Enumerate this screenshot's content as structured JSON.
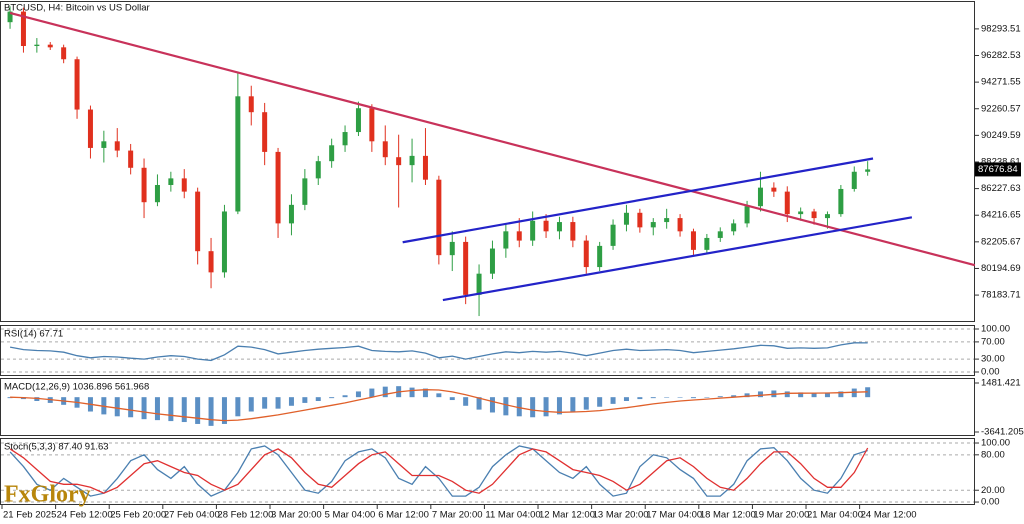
{
  "chart_data": [
    {
      "type": "candlestick",
      "title": "BTCUSD, H4:  Bitcoin vs US Dollar",
      "logo": "FxGlory",
      "up_color": "#2e9e44",
      "down_color": "#e0301e",
      "xlim": [
        -0.75,
        72.01
      ],
      "ylim": [
        76150,
        100400
      ],
      "yticks": [
        98293.51,
        96282.53,
        94271.55,
        92260.57,
        90249.59,
        88238.61,
        86227.63,
        84216.65,
        82205.67,
        80194.69,
        78183.71
      ],
      "xticks": [
        {
          "value": -0.6,
          "label": "21 Feb 2025"
        },
        {
          "value": 3.4,
          "label": "24 Feb 12:00"
        },
        {
          "value": 7.4,
          "label": "25 Feb 20:00"
        },
        {
          "value": 11.4,
          "label": "27 Feb 04:00"
        },
        {
          "value": 15.4,
          "label": "28 Feb 12:00"
        },
        {
          "value": 19.4,
          "label": "3 Mar 20:00"
        },
        {
          "value": 23.4,
          "label": "5 Mar 04:00"
        },
        {
          "value": 27.4,
          "label": "6 Mar 12:00"
        },
        {
          "value": 31.4,
          "label": "7 Mar 20:00"
        },
        {
          "value": 35.4,
          "label": "11 Mar 04:00"
        },
        {
          "value": 39.4,
          "label": "12 Mar 12:00"
        },
        {
          "value": 43.4,
          "label": "13 Mar 20:00"
        },
        {
          "value": 47.4,
          "label": "17 Mar 04:00"
        },
        {
          "value": 51.4,
          "label": "18 Mar 12:00"
        },
        {
          "value": 55.4,
          "label": "19 Mar 20:00"
        },
        {
          "value": 59.4,
          "label": "21 Mar 04:00"
        },
        {
          "value": 63.4,
          "label": "24 Mar 12:00"
        }
      ],
      "open": [
        98800,
        99600,
        97000,
        97100,
        96900,
        96000,
        92200,
        89300,
        89800,
        89100,
        87800,
        85200,
        86500,
        87000,
        86000,
        81500,
        79900,
        84500,
        93200,
        92000,
        89000,
        83600,
        85000,
        87000,
        88300,
        89500,
        90500,
        92300,
        89800,
        88600,
        88000,
        88700,
        86900,
        81200,
        82200,
        78200,
        79800,
        81700,
        83000,
        82300,
        83800,
        83000,
        83700,
        82300,
        80300,
        81900,
        83500,
        84400,
        83300,
        83700,
        84000,
        83000,
        81600,
        82500,
        83000,
        83600,
        84900,
        86300,
        86000,
        84300,
        84500,
        84000,
        84300,
        86200,
        87500
      ],
      "high": [
        100000,
        99900,
        97600,
        97300,
        97100,
        96200,
        92500,
        90600,
        90800,
        89600,
        88500,
        87300,
        87500,
        87700,
        86300,
        82500,
        85000,
        95000,
        94000,
        92700,
        89300,
        85800,
        87700,
        88700,
        90000,
        91000,
        92800,
        92600,
        91000,
        90300,
        90000,
        90800,
        87200,
        83000,
        82600,
        80500,
        82300,
        83600,
        84000,
        84500,
        84300,
        84100,
        84100,
        82700,
        82200,
        83900,
        85000,
        84700,
        84000,
        84700,
        84300,
        83200,
        82800,
        83300,
        83900,
        85300,
        87500,
        86700,
        86400,
        84800,
        84700,
        84500,
        86500,
        87900,
        88300
      ],
      "low": [
        98300,
        96500,
        96500,
        96700,
        95700,
        91500,
        88500,
        88200,
        88600,
        87300,
        84000,
        84900,
        86000,
        85500,
        80500,
        78700,
        79500,
        84300,
        91000,
        88000,
        82500,
        82700,
        84600,
        86500,
        87800,
        89000,
        90200,
        89000,
        88000,
        84800,
        86700,
        86500,
        80500,
        80000,
        77500,
        76600,
        79400,
        81000,
        81800,
        81900,
        82500,
        82400,
        81800,
        79800,
        80000,
        81600,
        83000,
        82900,
        82700,
        83200,
        82600,
        81200,
        81400,
        82200,
        82700,
        83300,
        84500,
        85600,
        83700,
        83800,
        83500,
        83200,
        84100,
        86000,
        87200
      ],
      "close": [
        99600,
        97000,
        97100,
        96900,
        96000,
        92200,
        89300,
        89800,
        89100,
        87800,
        85200,
        86500,
        87000,
        86000,
        81500,
        79900,
        84500,
        93200,
        92000,
        89000,
        83600,
        85000,
        87000,
        88300,
        89500,
        90500,
        92300,
        89800,
        88600,
        88000,
        88700,
        86900,
        81200,
        82200,
        78200,
        79800,
        81700,
        83000,
        82300,
        83800,
        83000,
        83700,
        82300,
        80300,
        81900,
        83500,
        84400,
        83300,
        83700,
        84000,
        83000,
        81600,
        82500,
        83000,
        83600,
        84900,
        86300,
        86000,
        84300,
        84500,
        84000,
        84300,
        86200,
        87500,
        87676.84
      ],
      "trendlines": [
        {
          "color": "#c8325a",
          "x": [
            0,
            72
          ],
          "y": [
            99498,
            80443
          ]
        },
        {
          "color": "#2323c8",
          "x": [
            29.3,
            64.4
          ],
          "y": [
            82175,
            88502
          ]
        },
        {
          "color": "#2323c8",
          "x": [
            32.3,
            67.3
          ],
          "y": [
            77806,
            84058
          ]
        }
      ]
    },
    {
      "type": "line",
      "label": "RSI(14) 67.71",
      "ylim": [
        -9.3,
        109.3
      ],
      "yticks": [
        {
          "value": 100,
          "label": "100.00"
        },
        {
          "value": 70,
          "label": "70.00"
        },
        {
          "value": 30,
          "label": "30.00"
        },
        {
          "value": 0,
          "label": "0.00"
        }
      ],
      "series": [
        {
          "color": "#4a7fb0",
          "values": [
            58,
            52,
            50,
            49,
            46,
            38,
            33,
            36,
            35,
            32,
            30,
            35,
            38,
            36,
            30,
            27,
            40,
            60,
            58,
            52,
            42,
            46,
            50,
            53,
            55,
            57,
            60,
            50,
            48,
            47,
            49,
            44,
            33,
            37,
            30,
            36,
            42,
            47,
            45,
            48,
            46,
            48,
            44,
            38,
            44,
            50,
            53,
            50,
            51,
            52,
            50,
            45,
            48,
            51,
            54,
            58,
            62,
            61,
            55,
            56,
            55,
            56,
            63,
            68,
            67.71
          ]
        }
      ]
    },
    {
      "type": "bar",
      "label": "MACD(12,26,9) 1036.896 561.968",
      "ylim": [
        -4059,
        2004
      ],
      "yticks": [
        1481.421,
        -3641.205
      ],
      "series": [
        {
          "color": "#5b8fc4",
          "values": [
            -100,
            -200,
            -400,
            -600,
            -800,
            -1100,
            -1500,
            -1800,
            -2000,
            -2100,
            -2300,
            -2400,
            -2500,
            -2600,
            -2800,
            -3000,
            -2800,
            -2000,
            -1500,
            -1200,
            -1200,
            -900,
            -600,
            -400,
            -100,
            200,
            600,
            900,
            1100,
            1150,
            1000,
            900,
            400,
            -300,
            -900,
            -1300,
            -1600,
            -1900,
            -2000,
            -2100,
            -2000,
            -1800,
            -1500,
            -1300,
            -1000,
            -700,
            -400,
            -200,
            -100,
            0,
            -50,
            -100,
            0,
            100,
            200,
            400,
            600,
            700,
            600,
            500,
            400,
            450,
            600,
            900,
            1036.896
          ]
        },
        {
          "color": "#e0602a",
          "type": "line",
          "values": [
            0,
            -50,
            -130,
            -250,
            -400,
            -550,
            -750,
            -950,
            -1150,
            -1350,
            -1550,
            -1750,
            -1900,
            -2050,
            -2200,
            -2350,
            -2450,
            -2400,
            -2250,
            -2050,
            -1850,
            -1600,
            -1350,
            -1100,
            -850,
            -600,
            -300,
            0,
            300,
            550,
            700,
            780,
            750,
            550,
            250,
            -100,
            -450,
            -800,
            -1100,
            -1350,
            -1500,
            -1580,
            -1550,
            -1500,
            -1400,
            -1250,
            -1100,
            -900,
            -700,
            -550,
            -400,
            -300,
            -200,
            -100,
            0,
            100,
            200,
            300,
            400,
            420,
            430,
            440,
            470,
            520,
            561.968
          ]
        }
      ]
    },
    {
      "type": "line",
      "label": "Stoch(5,3,3) 87.40 91.63",
      "ylim": [
        -5,
        108.5
      ],
      "yticks": [
        {
          "value": 100,
          "label": "100.00"
        },
        {
          "value": 80,
          "label": "80.00"
        },
        {
          "value": 20,
          "label": "20.00"
        },
        {
          "value": 0,
          "label": "0.00"
        }
      ],
      "series": [
        {
          "color": "#4a7fb0",
          "values": [
            85,
            60,
            30,
            20,
            40,
            25,
            10,
            15,
            40,
            70,
            80,
            55,
            40,
            60,
            30,
            10,
            20,
            50,
            90,
            95,
            80,
            50,
            20,
            15,
            35,
            70,
            85,
            90,
            75,
            40,
            30,
            60,
            40,
            10,
            10,
            25,
            60,
            80,
            95,
            90,
            70,
            50,
            40,
            60,
            30,
            10,
            15,
            60,
            80,
            75,
            55,
            40,
            10,
            10,
            30,
            70,
            90,
            92,
            70,
            40,
            20,
            15,
            40,
            80,
            87.4
          ]
        },
        {
          "color": "#e03030",
          "values": [
            90,
            75,
            55,
            35,
            30,
            30,
            25,
            15,
            25,
            45,
            65,
            70,
            60,
            50,
            45,
            30,
            20,
            30,
            55,
            80,
            90,
            75,
            50,
            30,
            25,
            45,
            65,
            80,
            85,
            65,
            45,
            45,
            45,
            35,
            20,
            15,
            30,
            55,
            80,
            90,
            85,
            70,
            55,
            50,
            45,
            35,
            20,
            30,
            50,
            70,
            75,
            60,
            40,
            25,
            20,
            40,
            65,
            85,
            85,
            65,
            40,
            25,
            25,
            50,
            91.63
          ]
        }
      ]
    }
  ]
}
